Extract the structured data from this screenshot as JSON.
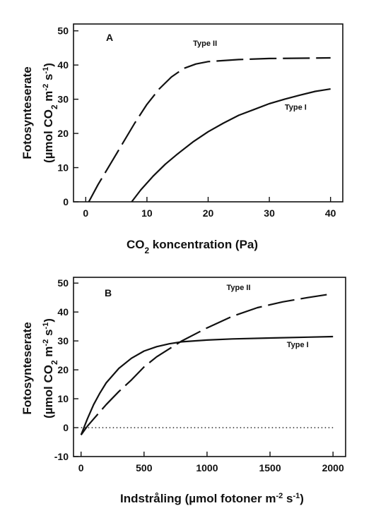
{
  "chart_data": [
    {
      "type": "line",
      "panel_label": "A",
      "xlabel_parts": [
        "CO",
        "2",
        " koncentration (Pa)"
      ],
      "ylabel_line1": "Fotosynteserate",
      "ylabel_line2_parts": [
        "(µmol CO",
        "2",
        " m",
        "-2",
        " s",
        "-1",
        ")"
      ],
      "xlim": [
        -2,
        42
      ],
      "ylim": [
        0,
        52
      ],
      "xticks": [
        0,
        10,
        20,
        30,
        40
      ],
      "yticks": [
        0,
        10,
        20,
        30,
        40,
        50
      ],
      "series": [
        {
          "name": "Type II",
          "style": "dashed",
          "x": [
            0.5,
            2,
            4,
            6,
            8,
            10,
            12,
            14,
            16,
            18,
            20,
            25,
            30,
            35,
            40
          ],
          "y": [
            0,
            5,
            11,
            17,
            23,
            28.5,
            33,
            36.5,
            39,
            40.3,
            41,
            41.6,
            41.9,
            42,
            42.1
          ]
        },
        {
          "name": "Type I",
          "style": "solid",
          "x": [
            7.5,
            9,
            11,
            13,
            15,
            17.5,
            20,
            22.5,
            25,
            27.5,
            30,
            32.5,
            35,
            37.5,
            40
          ],
          "y": [
            0,
            3.5,
            7.5,
            11,
            14,
            17.5,
            20.5,
            23,
            25.3,
            27,
            28.7,
            30,
            31.2,
            32.3,
            33
          ]
        }
      ],
      "annotations": [
        {
          "text": "Type II",
          "x": 19.5,
          "y": 45.6
        },
        {
          "text": "Type I",
          "x": 34.3,
          "y": 26.9
        }
      ]
    },
    {
      "type": "line",
      "panel_label": "B",
      "xlabel_parts": [
        "Indstråling (µmol fotoner m",
        "-2",
        " s",
        "-1",
        ")"
      ],
      "ylabel_line1": "Fotosynteserate",
      "ylabel_line2_parts": [
        "(µmol CO",
        "2",
        " m",
        "-2",
        " s",
        "-1",
        ")"
      ],
      "xlim": [
        -60,
        2100
      ],
      "ylim": [
        -10,
        52
      ],
      "xticks": [
        0,
        500,
        1000,
        1500,
        2000
      ],
      "yticks": [
        -10,
        0,
        10,
        20,
        30,
        40,
        50
      ],
      "reference_line": {
        "y": 0,
        "style": "dotted"
      },
      "series": [
        {
          "name": "Type II",
          "style": "dashed",
          "x": [
            0,
            50,
            100,
            200,
            300,
            400,
            500,
            600,
            800,
            1000,
            1200,
            1400,
            1600,
            1800,
            1950
          ],
          "y": [
            -2.5,
            0.5,
            3,
            8,
            12.5,
            16.5,
            21,
            24.5,
            30,
            34.5,
            38.5,
            41.5,
            43.5,
            45,
            46
          ]
        },
        {
          "name": "Type I",
          "style": "solid",
          "x": [
            0,
            50,
            100,
            150,
            200,
            300,
            400,
            500,
            600,
            700,
            800,
            1000,
            1200,
            1500,
            1800,
            2000
          ],
          "y": [
            -2.5,
            3,
            8,
            12,
            15.5,
            20.5,
            24,
            26.5,
            28,
            29,
            29.7,
            30.3,
            30.7,
            31,
            31.3,
            31.5
          ]
        }
      ],
      "annotations": [
        {
          "text": "Type II",
          "x": 1250,
          "y": 47.6
        },
        {
          "text": "Type I",
          "x": 1720,
          "y": 27.8
        }
      ]
    }
  ]
}
